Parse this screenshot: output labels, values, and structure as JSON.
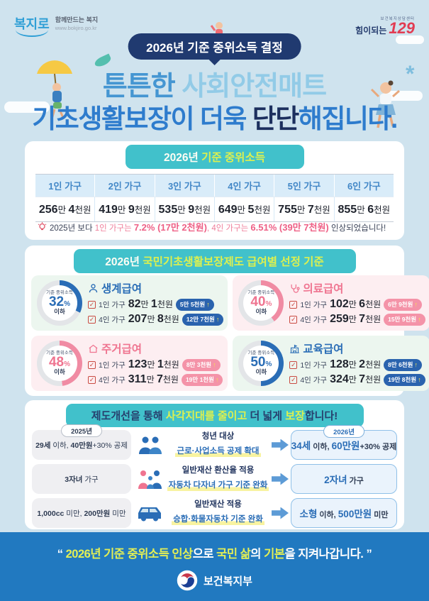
{
  "brand": {
    "bokjiro_name": "복지로",
    "bokjiro_tagline": "함께만드는 복지",
    "bokjiro_url": "www.bokjiro.go.kr",
    "helpline_small": "보건복지상담센터",
    "helpline_prefix": "힘이되는",
    "helpline_number": "129",
    "ministry": "보건복지부"
  },
  "icons": {
    "up_arrow": "↑",
    "check": "✓",
    "asterisk": "*"
  },
  "header": {
    "badge": "2026년 기준 중위소득 결정",
    "title1": [
      {
        "t": "튼튼한 ",
        "c": "t-blue"
      },
      {
        "t": "사회안전매트",
        "c": "t-sky"
      }
    ],
    "title2": [
      {
        "t": "기초생활보장",
        "c": "t-strong"
      },
      {
        "t": "이 더욱 ",
        "c": "t-strong2"
      },
      {
        "t": "단단",
        "c": "t-navy"
      },
      {
        "t": "해집니다.",
        "c": "t-strong2"
      }
    ]
  },
  "income_section": {
    "band": [
      {
        "t": "2026년 ",
        "c": "w"
      },
      {
        "t": "기준 중위소득",
        "c": "yg"
      }
    ],
    "columns": [
      "1인 가구",
      "2인 가구",
      "3인 가구",
      "4인 가구",
      "5인 가구",
      "6인 가구"
    ],
    "amounts": [
      [
        {
          "t": "256",
          "c": "n"
        },
        {
          "t": "만 ",
          "c": ""
        },
        {
          "t": "4",
          "c": "n"
        },
        {
          "t": "천원",
          "c": ""
        }
      ],
      [
        {
          "t": "419",
          "c": "n"
        },
        {
          "t": "만 ",
          "c": ""
        },
        {
          "t": "9",
          "c": "n"
        },
        {
          "t": "천원",
          "c": ""
        }
      ],
      [
        {
          "t": "535",
          "c": "n"
        },
        {
          "t": "만 ",
          "c": ""
        },
        {
          "t": "9",
          "c": "n"
        },
        {
          "t": "천원",
          "c": ""
        }
      ],
      [
        {
          "t": "649",
          "c": "n"
        },
        {
          "t": "만 ",
          "c": ""
        },
        {
          "t": "5",
          "c": "n"
        },
        {
          "t": "천원",
          "c": ""
        }
      ],
      [
        {
          "t": "755",
          "c": "n"
        },
        {
          "t": "만 ",
          "c": ""
        },
        {
          "t": "7",
          "c": "n"
        },
        {
          "t": "천원",
          "c": ""
        }
      ],
      [
        {
          "t": "855",
          "c": "n"
        },
        {
          "t": "만 ",
          "c": ""
        },
        {
          "t": "6",
          "c": "n"
        },
        {
          "t": "천원",
          "c": ""
        }
      ]
    ],
    "footnote": [
      {
        "t": "2025년 보다 ",
        "c": "fn"
      },
      {
        "t": "1인 가구는 ",
        "c": "fp"
      },
      {
        "t": "7.2% (17만 2천원)",
        "c": "fpb"
      },
      {
        "t": ", ",
        "c": "fp"
      },
      {
        "t": "4인 가구는 ",
        "c": "fp"
      },
      {
        "t": "6.51% (39만 7천원)",
        "c": "fpb"
      },
      {
        "t": " 인상되었습니다!",
        "c": "fn"
      }
    ]
  },
  "benefit_section": {
    "band": [
      {
        "t": "2026년 ",
        "c": "w"
      },
      {
        "t": "국민기초생활보장제도 급여별 선정 기준",
        "c": "yg"
      }
    ],
    "donut_label_top": "기준 중위소득",
    "donut_label_bottom": "이하",
    "percent_sign": "%",
    "cards": [
      {
        "name": "생계급여",
        "theme": "blue",
        "bg": "mint",
        "percent": "32",
        "rows": [
          {
            "label": "1인 가구",
            "amount": [
              {
                "t": "82",
                "c": "n"
              },
              {
                "t": "만 ",
                "c": ""
              },
              {
                "t": "1",
                "c": "n"
              },
              {
                "t": "천원",
                "c": ""
              }
            ],
            "badge": "5만 5천원"
          },
          {
            "label": "4인 가구",
            "amount": [
              {
                "t": "207",
                "c": "n"
              },
              {
                "t": "만 ",
                "c": ""
              },
              {
                "t": "8",
                "c": "n"
              },
              {
                "t": "천원",
                "c": ""
              }
            ],
            "badge": "12만 7천원"
          }
        ]
      },
      {
        "name": "의료급여",
        "theme": "pink",
        "bg": "pink",
        "percent": "40",
        "rows": [
          {
            "label": "1인 가구",
            "amount": [
              {
                "t": "102",
                "c": "n"
              },
              {
                "t": "만 ",
                "c": ""
              },
              {
                "t": "6",
                "c": "n"
              },
              {
                "t": "천원",
                "c": ""
              }
            ],
            "badge": "6만 9천원"
          },
          {
            "label": "4인 가구",
            "amount": [
              {
                "t": "259",
                "c": "n"
              },
              {
                "t": "만 ",
                "c": ""
              },
              {
                "t": "7",
                "c": "n"
              },
              {
                "t": "천원",
                "c": ""
              }
            ],
            "badge": "15만 9천원"
          }
        ]
      },
      {
        "name": "주거급여",
        "theme": "pink",
        "bg": "pink",
        "percent": "48",
        "rows": [
          {
            "label": "1인 가구",
            "amount": [
              {
                "t": "123",
                "c": "n"
              },
              {
                "t": "만 ",
                "c": ""
              },
              {
                "t": "1",
                "c": "n"
              },
              {
                "t": "천원",
                "c": ""
              }
            ],
            "badge": "8만 3천원"
          },
          {
            "label": "4인 가구",
            "amount": [
              {
                "t": "311",
                "c": "n"
              },
              {
                "t": "만 ",
                "c": ""
              },
              {
                "t": "7",
                "c": "n"
              },
              {
                "t": "천원",
                "c": ""
              }
            ],
            "badge": "19만 1천원"
          }
        ]
      },
      {
        "name": "교육급여",
        "theme": "blue",
        "bg": "mint",
        "percent": "50",
        "rows": [
          {
            "label": "1인 가구",
            "amount": [
              {
                "t": "128",
                "c": "n"
              },
              {
                "t": "만 ",
                "c": ""
              },
              {
                "t": "2",
                "c": "n"
              },
              {
                "t": "천원",
                "c": ""
              }
            ],
            "badge": "8만 6천원"
          },
          {
            "label": "4인 가구",
            "amount": [
              {
                "t": "324",
                "c": "n"
              },
              {
                "t": "만 ",
                "c": ""
              },
              {
                "t": "7",
                "c": "n"
              },
              {
                "t": "천원",
                "c": ""
              }
            ],
            "badge": "19만 8천원"
          }
        ]
      }
    ]
  },
  "improvement_section": {
    "band": [
      {
        "t": "제도개선을 통해 ",
        "c": "nv"
      },
      {
        "t": "사각지대를 줄이고",
        "c": "yg"
      },
      {
        "t": " 더 넓게 ",
        "c": "nv"
      },
      {
        "t": "보장",
        "c": "yg"
      },
      {
        "t": "합니다!",
        "c": "nv"
      }
    ],
    "left_year": "2025년",
    "right_year": "2026년",
    "rows": [
      {
        "before": [
          {
            "t": "29세",
            "c": "b"
          },
          {
            "t": " 이하, ",
            "c": ""
          },
          {
            "t": "40만원",
            "c": "b"
          },
          {
            "t": "+30% 공제",
            "c": ""
          }
        ],
        "line1": "청년 대상",
        "line2": "근로·사업소득 공제 확대",
        "after": [
          {
            "t": "34세",
            "c": "bl"
          },
          {
            "t": " 이하, ",
            "c": "nb"
          },
          {
            "t": "60만원",
            "c": "bl"
          },
          {
            "t": "+30% 공제",
            "c": "nb"
          }
        ]
      },
      {
        "before": [
          {
            "t": "3자녀",
            "c": "b"
          },
          {
            "t": " 가구",
            "c": ""
          }
        ],
        "line1": "일반재산 환산율 적용",
        "line2": "자동차 다자녀 가구 기준 완화",
        "after": [
          {
            "t": "2자녀",
            "c": "bl"
          },
          {
            "t": " 가구",
            "c": "nb"
          }
        ]
      },
      {
        "before": [
          {
            "t": "1,000cc",
            "c": "b"
          },
          {
            "t": " 미만, ",
            "c": ""
          },
          {
            "t": "200만원",
            "c": "b"
          },
          {
            "t": " 미만",
            "c": ""
          }
        ],
        "line1": "일반재산 적용",
        "line2": "승합·화물자동차 기준 완화",
        "after": [
          {
            "t": "소형",
            "c": "bl"
          },
          {
            "t": " 이하, ",
            "c": "nb"
          },
          {
            "t": "500만원",
            "c": "bl"
          },
          {
            "t": " 미만",
            "c": "nb"
          }
        ]
      }
    ]
  },
  "footer": {
    "quote": [
      {
        "t": "“ ",
        "c": "qw"
      },
      {
        "t": "2026년 기준 중위소득 인상",
        "c": "qy"
      },
      {
        "t": "으로 ",
        "c": "qw"
      },
      {
        "t": "국민 삶",
        "c": "qy"
      },
      {
        "t": "의 ",
        "c": "qw"
      },
      {
        "t": "기본",
        "c": "qy"
      },
      {
        "t": "을 지켜나갑니다. ",
        "c": "qw"
      },
      {
        "t": "”",
        "c": "qw"
      }
    ]
  },
  "colors": {
    "background": "#cfe3ee",
    "teal_band": "#41c1cb",
    "navy": "#203a70",
    "accent_blue": "#2a6db6",
    "accent_pink": "#ef7490",
    "highlight_yellow_green": "#ddf04f",
    "footer_blue": "#2179c0",
    "helpline_red": "#e23b52"
  }
}
